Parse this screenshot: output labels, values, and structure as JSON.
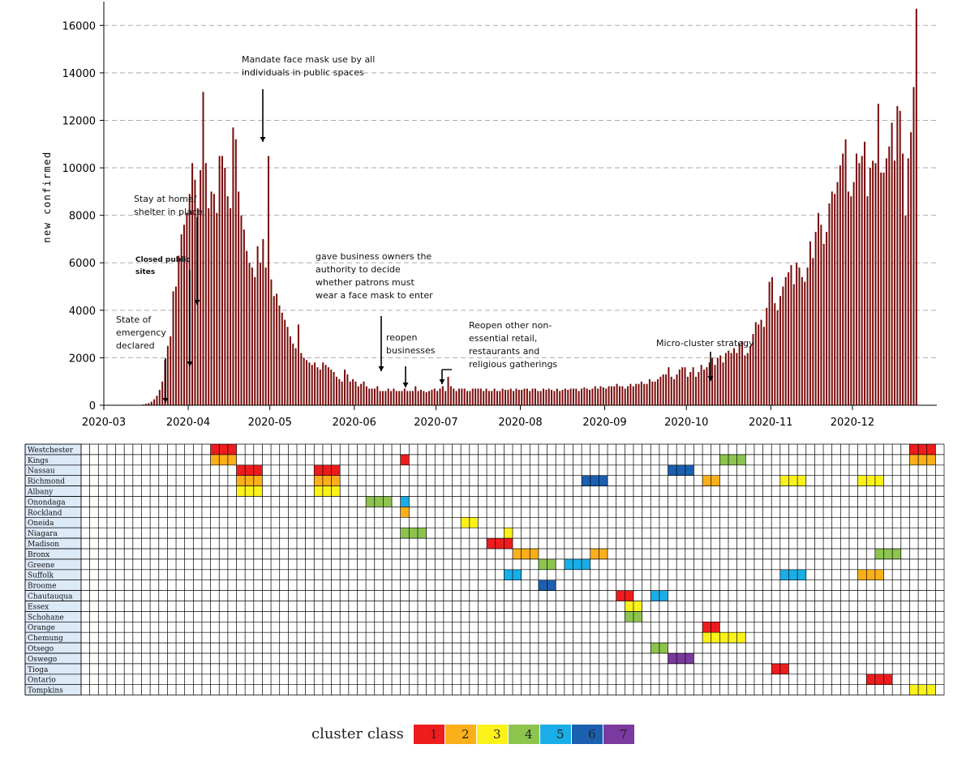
{
  "chart_data": {
    "type": "bar",
    "ylabel": "new confirmed",
    "ylim": [
      0,
      17000
    ],
    "yticks": [
      0,
      2000,
      4000,
      6000,
      8000,
      10000,
      12000,
      14000,
      16000
    ],
    "xticks": [
      "2020-03",
      "2020-04",
      "2020-05",
      "2020-06",
      "2020-07",
      "2020-08",
      "2020-09",
      "2020-10",
      "2020-11",
      "2020-12"
    ],
    "grid": "horizontal dashed",
    "bar_color": "#7a0c0c",
    "series": [
      {
        "start_date": "2020-03-01",
        "values": [
          0,
          0,
          0,
          0,
          0,
          0,
          0,
          0,
          0,
          0,
          0,
          0,
          0,
          10,
          30,
          60,
          90,
          150,
          250,
          400,
          650,
          1000,
          1900,
          2500,
          2900,
          4800,
          5000,
          6300,
          7200,
          7600,
          8100,
          8900,
          10200,
          9500,
          8300,
          9900,
          13200,
          10200,
          8300,
          9000,
          8900,
          8100,
          10500,
          10500,
          10000,
          8800,
          8300,
          11700,
          11200,
          9000,
          8000,
          7400,
          6500,
          6000,
          5800,
          5400,
          6700,
          6000,
          7000,
          5800,
          10500,
          5300,
          4600,
          4700,
          4200,
          3900,
          3600,
          3300,
          2900,
          2600,
          2400,
          3400,
          2200,
          2000,
          1900,
          1800,
          1700,
          1800,
          1600,
          1500,
          1800,
          1700,
          1600,
          1500,
          1400,
          1200,
          1100,
          1000,
          1500,
          1300,
          1000,
          1100,
          1000,
          800,
          900,
          1000,
          800,
          700,
          700,
          700,
          800,
          600,
          600,
          600,
          700,
          600,
          700,
          600,
          600,
          600,
          700,
          600,
          600,
          600,
          800,
          600,
          650,
          600,
          550,
          600,
          650,
          700,
          600,
          700,
          800,
          600,
          1200,
          800,
          700,
          600,
          700,
          700,
          700,
          600,
          600,
          700,
          700,
          700,
          700,
          600,
          700,
          600,
          600,
          700,
          600,
          600,
          700,
          650,
          650,
          700,
          600,
          700,
          650,
          650,
          700,
          700,
          600,
          700,
          700,
          600,
          600,
          700,
          650,
          700,
          650,
          600,
          700,
          600,
          650,
          700,
          650,
          700,
          700,
          700,
          600,
          700,
          750,
          700,
          650,
          700,
          800,
          700,
          800,
          750,
          700,
          800,
          800,
          800,
          900,
          800,
          800,
          700,
          800,
          900,
          800,
          900,
          900,
          1000,
          900,
          900,
          1100,
          1000,
          1000,
          1100,
          1200,
          1300,
          1300,
          1600,
          1200,
          1100,
          1300,
          1500,
          1600,
          1600,
          1200,
          1400,
          1600,
          1200,
          1400,
          1700,
          1500,
          1600,
          1800,
          2000,
          1700,
          2000,
          2100,
          1800,
          2200,
          2300,
          2200,
          2400,
          2200,
          2600,
          2700,
          2100,
          2200,
          2500,
          3000,
          3500,
          3400,
          3600,
          3300,
          4100,
          5200,
          5400,
          4300,
          4000,
          4600,
          5000,
          5400,
          5600,
          5900,
          5100,
          6000,
          5800,
          5400,
          5200,
          5800,
          6900,
          6200,
          7300,
          8100,
          7600,
          6800,
          7300,
          8500,
          9000,
          8900,
          9400,
          10100,
          10600,
          11200,
          9000,
          8800,
          9400,
          10600,
          10200,
          10500,
          11100,
          8800,
          10000,
          10300,
          10200,
          12700,
          9800,
          9800,
          10400,
          10900,
          11900,
          10300,
          12600,
          12400,
          10600,
          8000,
          10400,
          11500,
          13400,
          16700
        ]
      }
    ],
    "annotations": [
      {
        "text": "State of emergency declared"
      },
      {
        "text": "Closed public sites"
      },
      {
        "text": "Stay at home/ shelter in place"
      },
      {
        "text": "Mandate face mask use by all individuals in public spaces"
      },
      {
        "text": "gave business owners the authority to decide whether patrons must wear a face mask to enter"
      },
      {
        "text": "reopen businesses"
      },
      {
        "text": "Reopen other non-essential retail, restaurants and religious gatherings"
      },
      {
        "text": "Micro-cluster strategy"
      }
    ]
  },
  "cluster_table": {
    "rows": [
      "Westchester",
      "Kings",
      "Nassau",
      "Richmond",
      "Albany",
      "Onondaga",
      "Rockland",
      "Oneida",
      "Niagara",
      "Madison",
      "Bronx",
      "Greene",
      "Suffolk",
      "Broome",
      "Chautauqua",
      "Essex",
      "Schohane",
      "Orange",
      "Chemung",
      "Otsego",
      "Oswego",
      "Tioga",
      "Ontario",
      "Tompkins"
    ],
    "cells": [
      [
        [
          15,
          1
        ],
        [
          16,
          1
        ],
        [
          17,
          1
        ],
        [
          96,
          1
        ],
        [
          97,
          1
        ],
        [
          98,
          1
        ]
      ],
      [
        [
          15,
          2
        ],
        [
          16,
          2
        ],
        [
          17,
          2
        ],
        [
          37,
          1
        ],
        [
          74,
          4
        ],
        [
          75,
          4
        ],
        [
          76,
          4
        ],
        [
          96,
          2
        ],
        [
          97,
          2
        ],
        [
          98,
          2
        ]
      ],
      [
        [
          18,
          1
        ],
        [
          19,
          1
        ],
        [
          20,
          1
        ],
        [
          27,
          1
        ],
        [
          28,
          1
        ],
        [
          29,
          1
        ],
        [
          68,
          6
        ],
        [
          69,
          6
        ],
        [
          70,
          6
        ]
      ],
      [
        [
          18,
          2
        ],
        [
          19,
          2
        ],
        [
          20,
          2
        ],
        [
          27,
          2
        ],
        [
          28,
          2
        ],
        [
          29,
          2
        ],
        [
          58,
          6
        ],
        [
          59,
          6
        ],
        [
          60,
          6
        ],
        [
          72,
          2
        ],
        [
          73,
          2
        ],
        [
          81,
          3
        ],
        [
          82,
          3
        ],
        [
          83,
          3
        ],
        [
          90,
          3
        ],
        [
          91,
          3
        ],
        [
          92,
          3
        ]
      ],
      [
        [
          18,
          3
        ],
        [
          19,
          3
        ],
        [
          20,
          3
        ],
        [
          27,
          3
        ],
        [
          28,
          3
        ],
        [
          29,
          3
        ]
      ],
      [
        [
          33,
          4
        ],
        [
          34,
          4
        ],
        [
          35,
          4
        ],
        [
          37,
          5
        ]
      ],
      [
        [
          37,
          2
        ]
      ],
      [
        [
          44,
          3
        ],
        [
          45,
          3
        ]
      ],
      [
        [
          37,
          4
        ],
        [
          38,
          4
        ],
        [
          39,
          4
        ],
        [
          49,
          3
        ]
      ],
      [
        [
          47,
          1
        ],
        [
          48,
          1
        ],
        [
          49,
          1
        ]
      ],
      [
        [
          50,
          2
        ],
        [
          51,
          2
        ],
        [
          52,
          2
        ],
        [
          59,
          2
        ],
        [
          60,
          2
        ],
        [
          92,
          4
        ],
        [
          93,
          4
        ],
        [
          94,
          4
        ]
      ],
      [
        [
          53,
          4
        ],
        [
          54,
          4
        ],
        [
          56,
          5
        ],
        [
          57,
          5
        ],
        [
          58,
          5
        ]
      ],
      [
        [
          49,
          5
        ],
        [
          50,
          5
        ],
        [
          81,
          5
        ],
        [
          82,
          5
        ],
        [
          83,
          5
        ],
        [
          90,
          2
        ],
        [
          91,
          2
        ],
        [
          92,
          2
        ]
      ],
      [
        [
          53,
          6
        ],
        [
          54,
          6
        ]
      ],
      [
        [
          62,
          1
        ],
        [
          63,
          1
        ],
        [
          66,
          5
        ],
        [
          67,
          5
        ]
      ],
      [
        [
          63,
          3
        ],
        [
          64,
          3
        ]
      ],
      [
        [
          63,
          4
        ],
        [
          64,
          4
        ]
      ],
      [
        [
          72,
          1
        ],
        [
          73,
          1
        ]
      ],
      [
        [
          72,
          3
        ],
        [
          73,
          3
        ],
        [
          74,
          3
        ],
        [
          75,
          3
        ],
        [
          76,
          3
        ]
      ],
      [
        [
          66,
          4
        ],
        [
          67,
          4
        ]
      ],
      [
        [
          68,
          7
        ],
        [
          69,
          7
        ],
        [
          70,
          7
        ]
      ],
      [
        [
          80,
          1
        ],
        [
          81,
          1
        ]
      ],
      [
        [
          91,
          1
        ],
        [
          92,
          1
        ],
        [
          93,
          1
        ]
      ],
      [
        [
          96,
          3
        ],
        [
          97,
          3
        ],
        [
          98,
          3
        ]
      ]
    ]
  },
  "legend": {
    "title": "cluster class",
    "classes": [
      {
        "label": "1",
        "color": "#ee1c1c"
      },
      {
        "label": "2",
        "color": "#fbb01a"
      },
      {
        "label": "3",
        "color": "#fbf21a"
      },
      {
        "label": "4",
        "color": "#8cc44e"
      },
      {
        "label": "5",
        "color": "#19aee7"
      },
      {
        "label": "6",
        "color": "#1b5fb0"
      },
      {
        "label": "7",
        "color": "#7a3aa0"
      }
    ]
  }
}
